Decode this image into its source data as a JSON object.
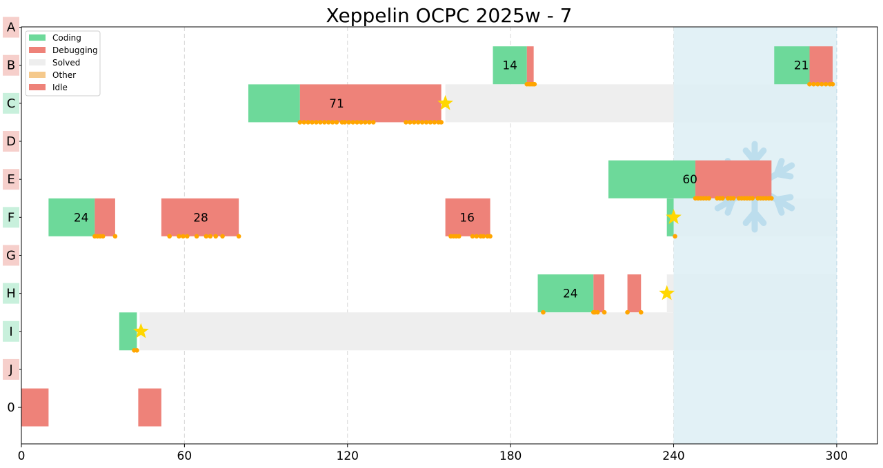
{
  "chart_data": {
    "type": "gantt",
    "title": "Xeppelin OCPC 2025w - 7",
    "x_ticks": [
      0,
      60,
      120,
      180,
      240,
      300
    ],
    "xlim": [
      0,
      315
    ],
    "freeze_start": 240,
    "contest_end": 300,
    "rows": [
      "A",
      "B",
      "C",
      "D",
      "E",
      "F",
      "G",
      "H",
      "I",
      "J",
      "0"
    ],
    "row_status": {
      "A": "unsolved",
      "B": "unsolved",
      "C": "solved",
      "D": "unsolved",
      "E": "unsolved",
      "F": "solved",
      "G": "unsolved",
      "H": "solved",
      "I": "solved",
      "J": "unsolved",
      "0": "none"
    },
    "legend": [
      {
        "name": "Coding",
        "color": "#6dd99a"
      },
      {
        "name": "Debugging",
        "color": "#ee8279"
      },
      {
        "name": "Solved",
        "color": "#eeeeee"
      },
      {
        "name": "Other",
        "color": "#f5c98c"
      },
      {
        "name": "Idle",
        "color": "#ee8279"
      }
    ],
    "colors": {
      "coding": "#6dd99a",
      "debugging": "#ee8279",
      "solved": "#eeeeee",
      "freeze": "#ddeef5",
      "star": "#ffd700",
      "submission": "#ffa500",
      "label_solved": "#c8f0dc",
      "label_unsolved": "#f6cfcb"
    },
    "segments": [
      {
        "row": "B",
        "type": "coding",
        "start": 173.5,
        "end": 186,
        "label": "14"
      },
      {
        "row": "B",
        "type": "debugging",
        "start": 186,
        "end": 188.5
      },
      {
        "row": "B",
        "type": "coding",
        "start": 277,
        "end": 290,
        "label": "21"
      },
      {
        "row": "B",
        "type": "debugging",
        "start": 290,
        "end": 298.5
      },
      {
        "row": "C",
        "type": "coding",
        "start": 83.5,
        "end": 102.5
      },
      {
        "row": "C",
        "type": "debugging",
        "start": 102.5,
        "end": 154.5,
        "label": "71"
      },
      {
        "row": "E",
        "type": "coding",
        "start": 216,
        "end": 248,
        "label": "60"
      },
      {
        "row": "E",
        "type": "debugging",
        "start": 248,
        "end": 276
      },
      {
        "row": "F",
        "type": "coding",
        "start": 10,
        "end": 27,
        "label": "24"
      },
      {
        "row": "F",
        "type": "debugging",
        "start": 27,
        "end": 34.5
      },
      {
        "row": "F",
        "type": "debugging",
        "start": 51.5,
        "end": 80,
        "label": "28"
      },
      {
        "row": "F",
        "type": "debugging",
        "start": 156,
        "end": 172.5,
        "label": "16"
      },
      {
        "row": "F",
        "type": "coding",
        "start": 237.5,
        "end": 240
      },
      {
        "row": "H",
        "type": "coding",
        "start": 190,
        "end": 210.5,
        "label": "24"
      },
      {
        "row": "H",
        "type": "debugging",
        "start": 210.5,
        "end": 214.5
      },
      {
        "row": "H",
        "type": "debugging",
        "start": 223,
        "end": 228
      },
      {
        "row": "I",
        "type": "coding",
        "start": 36,
        "end": 42.5
      },
      {
        "row": "0",
        "type": "debugging",
        "start": 0,
        "end": 10
      },
      {
        "row": "0",
        "type": "debugging",
        "start": 43,
        "end": 51.5
      }
    ],
    "solved_spans": [
      {
        "row": "C",
        "start": 156,
        "end": 300
      },
      {
        "row": "F",
        "start": 240,
        "end": 300
      },
      {
        "row": "H",
        "start": 237.5,
        "end": 300
      },
      {
        "row": "I",
        "start": 43.5,
        "end": 300
      }
    ],
    "stars": [
      {
        "row": "C",
        "t": 156
      },
      {
        "row": "F",
        "t": 240
      },
      {
        "row": "H",
        "t": 237.5
      },
      {
        "row": "I",
        "t": 44
      }
    ],
    "submissions": [
      {
        "row": "B",
        "times": [
          186,
          186.8,
          187.5,
          188.2,
          188.8
        ]
      },
      {
        "row": "B",
        "times": [
          290,
          291.5,
          293,
          294.5,
          296,
          297.5,
          298.5
        ]
      },
      {
        "row": "C",
        "times": [
          102.5,
          104,
          105.5,
          107,
          108.5,
          110,
          111.5,
          113,
          114.5,
          116,
          118,
          119,
          120.5,
          122,
          123.5,
          125,
          126.5,
          128,
          129.5,
          141.5,
          143,
          144.5,
          146,
          147.5,
          149,
          150.5,
          152,
          153.5,
          154.5
        ]
      },
      {
        "row": "E",
        "times": [
          248,
          249,
          250,
          251,
          252,
          253,
          256,
          257,
          258,
          260,
          261,
          262,
          264,
          265,
          266,
          267,
          268,
          269,
          271,
          272,
          273,
          274,
          275,
          276
        ]
      },
      {
        "row": "F",
        "times": [
          27,
          28,
          29,
          30,
          34.5
        ]
      },
      {
        "row": "F",
        "times": [
          54.5,
          58,
          59.5,
          61,
          64.5,
          68,
          69.5,
          71.5,
          74,
          80
        ]
      },
      {
        "row": "F",
        "times": [
          158,
          159,
          160,
          161,
          166,
          167.5,
          169,
          170,
          171.5,
          172.5
        ]
      },
      {
        "row": "F",
        "times": [
          240.5
        ]
      },
      {
        "row": "H",
        "times": [
          192,
          210.5,
          211,
          212,
          214.5,
          223,
          228
        ]
      },
      {
        "row": "I",
        "times": [
          41.5,
          42.5
        ]
      }
    ]
  }
}
